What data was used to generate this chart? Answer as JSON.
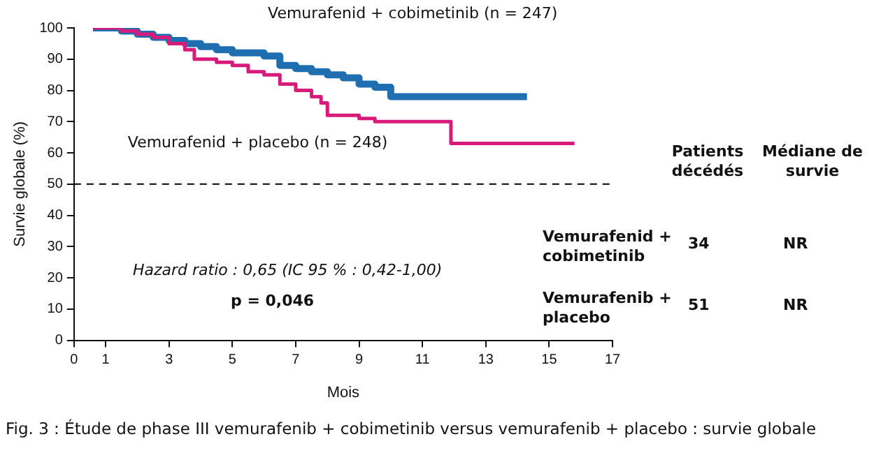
{
  "chart_data": {
    "type": "step",
    "xlabel": "Mois",
    "ylabel": "Survie globale (%)",
    "series": [
      {
        "name": "Vemurafenid + cobimetinib (n = 247)",
        "color": "#1f6fb0",
        "x": [
          0.6,
          1.5,
          2,
          2.5,
          3,
          3.5,
          4,
          4.5,
          5,
          6,
          6.5,
          7,
          7.5,
          8,
          8.5,
          9,
          9.5,
          10,
          14.3
        ],
        "values": [
          100,
          99,
          98,
          97,
          96,
          95,
          94,
          93,
          92,
          91,
          88,
          87,
          86,
          85,
          84,
          82,
          81,
          78,
          78
        ]
      },
      {
        "name": "Vemurafenid + placebo (n = 248)",
        "color": "#d81b7b",
        "x": [
          0.6,
          1.5,
          2,
          2.5,
          3,
          3.5,
          3.8,
          4.5,
          5,
          5.5,
          6,
          6.5,
          7,
          7.5,
          7.8,
          8,
          9,
          9.5,
          11.9,
          15.8
        ],
        "values": [
          100,
          99,
          98,
          97,
          95,
          93,
          90,
          89,
          88,
          86,
          85,
          82,
          80,
          78,
          76,
          72,
          71,
          70,
          63,
          63
        ]
      }
    ],
    "xlim": [
      0,
      17
    ],
    "xticks": [
      0,
      1,
      3,
      5,
      7,
      9,
      11,
      13,
      15,
      17
    ],
    "ylim": [
      0,
      100
    ],
    "yticks": [
      0,
      10,
      20,
      30,
      40,
      50,
      60,
      70,
      80,
      90,
      100
    ],
    "grid": false,
    "legend": false,
    "line_style": "solid",
    "marker": "none",
    "ref_lines": [
      {
        "axis": "y",
        "value": 50,
        "color": "#000000",
        "line_style": "dashed"
      }
    ],
    "annotations": [
      "Hazard ratio : 0,65 (IC 95 % : 0,42-1,00)",
      "p = 0,046",
      "Patients décédés",
      "Médiane de survie",
      "Vemurafenid + cobimetinib",
      "34",
      "NR",
      "Vemurafenib + placebo",
      "51",
      "NR",
      "Fig. 3 : Étude de phase III vemurafenib + cobimetinib versus vemurafenib + placebo : survie globale"
    ]
  }
}
